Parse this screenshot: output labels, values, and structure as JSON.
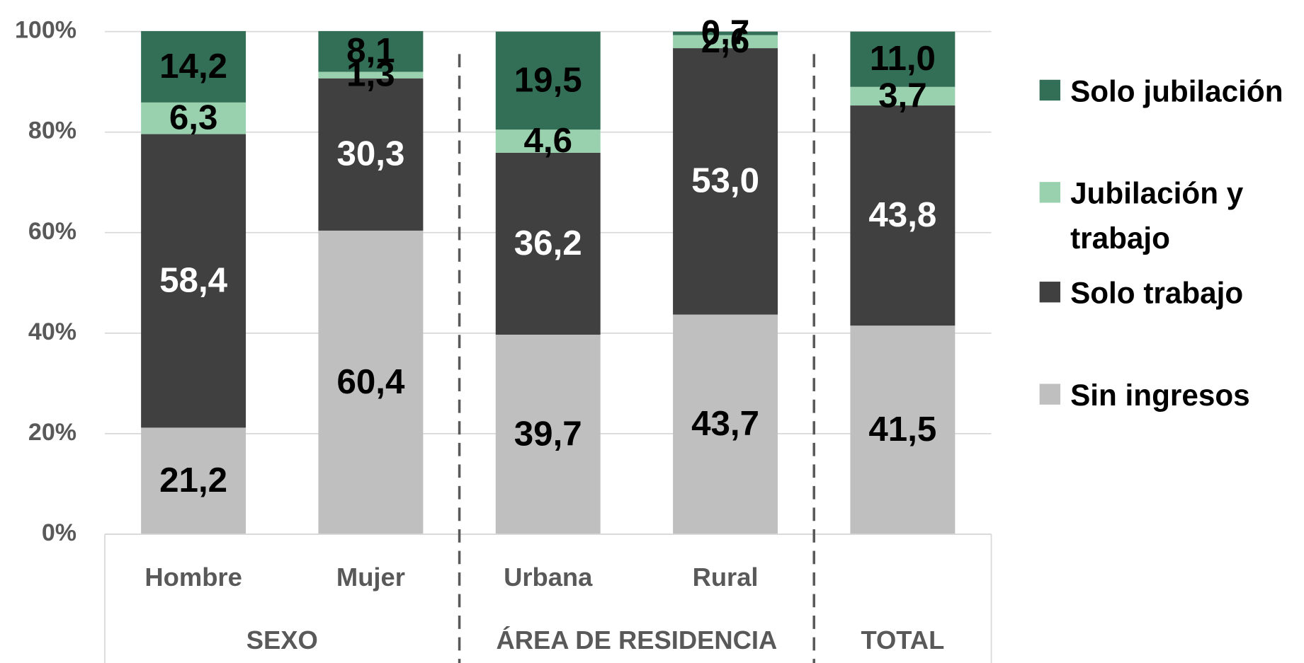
{
  "chart_data": {
    "type": "stacked_bar",
    "categories": [
      "Hombre",
      "Mujer",
      "Urbana",
      "Rural",
      null
    ],
    "group_labels": [
      "SEXO",
      "ÁREA DE RESIDENCIA",
      "TOTAL"
    ],
    "series": [
      {
        "name": "Sin ingresos",
        "color": "#bfbfbf",
        "label_color": "#000000",
        "values": [
          21.2,
          60.4,
          39.7,
          43.7,
          41.5
        ],
        "value_labels": [
          "21,2",
          "60,4",
          "39,7",
          "43,7",
          "41,5"
        ]
      },
      {
        "name": "Solo trabajo",
        "color": "#404040",
        "label_color": "#ffffff",
        "values": [
          58.4,
          30.3,
          36.2,
          53.0,
          43.8
        ],
        "value_labels": [
          "58,4",
          "30,3",
          "36,2",
          "53,0",
          "43,8"
        ]
      },
      {
        "name": "Jubilación y trabajo",
        "color": "#99d0ae",
        "label_color": "#000000",
        "values": [
          6.3,
          1.3,
          4.6,
          2.6,
          3.7
        ],
        "value_labels": [
          "6,3",
          "1,3",
          "4,6",
          "2,6",
          "3,7"
        ]
      },
      {
        "name": "Solo jubilación",
        "color": "#336f57",
        "label_color": "#000000",
        "values": [
          14.2,
          8.1,
          19.5,
          0.7,
          11.0
        ],
        "value_labels": [
          "14,2",
          "8,1",
          "19,5",
          "0,7",
          "11,0"
        ]
      }
    ],
    "ylim": [
      0,
      100
    ],
    "yticks": [
      {
        "value": 0,
        "label": "0%"
      },
      {
        "value": 20,
        "label": "20%"
      },
      {
        "value": 40,
        "label": "40%"
      },
      {
        "value": 60,
        "label": "60%"
      },
      {
        "value": 80,
        "label": "80%"
      },
      {
        "value": 100,
        "label": "100%"
      }
    ],
    "grid": true,
    "legend": "right"
  }
}
